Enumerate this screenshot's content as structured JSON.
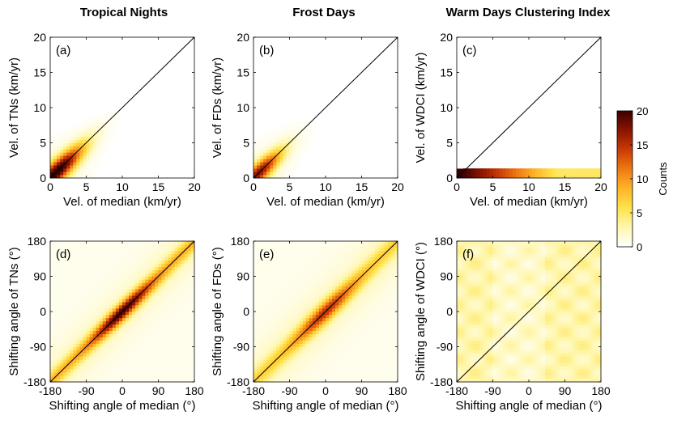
{
  "column_titles": [
    "Tropical Nights",
    "Frost Days",
    "Warm Days Clustering Index"
  ],
  "colorbar": {
    "label": "Counts",
    "ticks": [
      "0",
      "5",
      "10",
      "15",
      "20"
    ],
    "min": 0,
    "max": 20,
    "colors": [
      "#ffffff",
      "#fff7b0",
      "#ffe24a",
      "#ffb428",
      "#ef7a12",
      "#c93a06",
      "#8a1400",
      "#3a0000"
    ]
  },
  "chart_data": [
    {
      "type": "heatmap",
      "panel": "(a)",
      "title": "Tropical Nights",
      "xlabel": "Vel. of median (km/yr)",
      "ylabel": "Vel. of TNs (km/yr)",
      "xlim": [
        0,
        20
      ],
      "ylim": [
        0,
        20
      ],
      "xticks": [
        "0",
        "5",
        "10",
        "15",
        "20"
      ],
      "yticks": [
        "0",
        "5",
        "10",
        "15",
        "20"
      ],
      "reference_line": "1:1",
      "density": {
        "mode": "diag",
        "center": [
          1.0,
          1.0
        ],
        "spread_along": 3.5,
        "spread_across": 0.9,
        "peak": 20
      }
    },
    {
      "type": "heatmap",
      "panel": "(b)",
      "title": "Frost Days",
      "xlabel": "Vel. of median (km/yr)",
      "ylabel": "Vel. of FDs (km/yr)",
      "xlim": [
        0,
        20
      ],
      "ylim": [
        0,
        20
      ],
      "xticks": [
        "0",
        "5",
        "10",
        "15",
        "20"
      ],
      "yticks": [
        "0",
        "5",
        "10",
        "15",
        "20"
      ],
      "reference_line": "1:1",
      "density": {
        "mode": "diag",
        "center": [
          0.8,
          0.8
        ],
        "spread_along": 3.0,
        "spread_across": 0.8,
        "peak": 16
      }
    },
    {
      "type": "heatmap",
      "panel": "(c)",
      "title": "Warm Days Clustering Index",
      "xlabel": "Vel. of median (km/yr)",
      "ylabel": "Vel. of WDCI (km/yr)",
      "xlim": [
        0,
        20
      ],
      "ylim": [
        0,
        20
      ],
      "xticks": [
        "0",
        "5",
        "10",
        "15",
        "20"
      ],
      "yticks": [
        "0",
        "5",
        "10",
        "15",
        "20"
      ],
      "reference_line": "1:1",
      "density": {
        "mode": "band",
        "band_y": [
          0,
          1.5
        ],
        "peak": 20
      }
    },
    {
      "type": "heatmap",
      "panel": "(d)",
      "title": "Tropical Nights",
      "xlabel": "Shifting angle of median (°)",
      "ylabel": "Shifting angle of TNs (°)",
      "xlim": [
        -180,
        180
      ],
      "ylim": [
        -180,
        180
      ],
      "xticks": [
        "-180",
        "-90",
        "0",
        "90",
        "180"
      ],
      "yticks": [
        "-180",
        "-90",
        "0",
        "90",
        "180"
      ],
      "reference_line": "1:1",
      "density": {
        "mode": "angle",
        "spread_across": 12,
        "peak": 18
      }
    },
    {
      "type": "heatmap",
      "panel": "(e)",
      "title": "Frost Days",
      "xlabel": "Shifting angle of median (°)",
      "ylabel": "Shifting angle of FDs (°)",
      "xlim": [
        -180,
        180
      ],
      "ylim": [
        -180,
        180
      ],
      "xticks": [
        "-180",
        "-90",
        "0",
        "90",
        "180"
      ],
      "yticks": [
        "-180",
        "-90",
        "0",
        "90",
        "180"
      ],
      "reference_line": "1:1",
      "density": {
        "mode": "angle",
        "spread_across": 14,
        "peak": 13
      }
    },
    {
      "type": "heatmap",
      "panel": "(f)",
      "title": "Warm Days Clustering Index",
      "xlabel": "Shifting angle of median (°)",
      "ylabel": "Shifting angle of WDCI (°)",
      "xlim": [
        -180,
        180
      ],
      "ylim": [
        -180,
        180
      ],
      "xticks": [
        "-180",
        "-90",
        "0",
        "90",
        "180"
      ],
      "yticks": [
        "-180",
        "-90",
        "0",
        "90",
        "180"
      ],
      "reference_line": "1:1",
      "density": {
        "mode": "uniform",
        "level": 3,
        "vertical_bands_x": [
          -90,
          45
        ]
      }
    }
  ]
}
